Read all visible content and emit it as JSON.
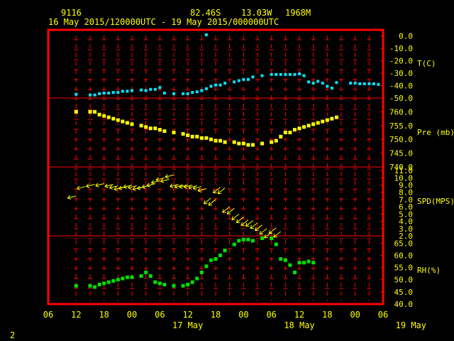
{
  "header": {
    "station": "9116",
    "lat": "82.46S",
    "lon": "13.03W",
    "elevation": "1968M",
    "time_range": "16 May 2015/120000UTC - 19 May 2015/000000UTC"
  },
  "footer": {
    "page_number": "2"
  },
  "colors": {
    "frame": "#ff0000",
    "text": "#ffff00",
    "temp": "#00e5ff",
    "pressure": "#ffff00",
    "wind": "#ffff00",
    "rh": "#00e000",
    "tick": "#ff0000"
  },
  "chart_data": {
    "type": "scatter",
    "x_axis": {
      "hour_ticks": [
        "06",
        "12",
        "18",
        "00",
        "06",
        "12",
        "18",
        "00",
        "06",
        "12",
        "18",
        "00",
        "06"
      ],
      "day_labels": [
        {
          "label": "17 May",
          "hour": 36
        },
        {
          "label": "18 May",
          "hour": 60
        },
        {
          "label": "19 May",
          "hour": 84
        }
      ],
      "range_hours": [
        6,
        78
      ]
    },
    "panels": [
      {
        "name": "T(C)",
        "ylim": [
          -50,
          5
        ],
        "ticks": [
          "0.0",
          "-10.0",
          "-20.0",
          "-30.0",
          "-40.0",
          "-50.0"
        ],
        "tick_values": [
          0,
          -10,
          -20,
          -30,
          -40,
          -50
        ],
        "points": [
          [
            12,
            -47
          ],
          [
            15,
            -47.5
          ],
          [
            16,
            -47.5
          ],
          [
            17,
            -46.5
          ],
          [
            18,
            -46
          ],
          [
            19,
            -46
          ],
          [
            20,
            -45.5
          ],
          [
            21,
            -45.5
          ],
          [
            22,
            -44.5
          ],
          [
            23,
            -44.5
          ],
          [
            24,
            -44
          ],
          [
            26,
            -43.5
          ],
          [
            27,
            -44
          ],
          [
            28,
            -43
          ],
          [
            29,
            -43
          ],
          [
            30,
            -41.5
          ],
          [
            31,
            -46
          ],
          [
            33,
            -46.5
          ],
          [
            35,
            -46.5
          ],
          [
            36,
            -46.5
          ],
          [
            37,
            -45.5
          ],
          [
            38,
            -45
          ],
          [
            39,
            -44
          ],
          [
            40,
            -42.5
          ],
          [
            41,
            -40.5
          ],
          [
            42,
            -39.5
          ],
          [
            43,
            -39.5
          ],
          [
            44,
            -38
          ],
          [
            46,
            -37
          ],
          [
            47,
            -36
          ],
          [
            48,
            -35
          ],
          [
            49,
            -35
          ],
          [
            50,
            -33
          ],
          [
            52,
            -32
          ],
          [
            54,
            -31
          ],
          [
            55,
            -31
          ],
          [
            56,
            -31
          ],
          [
            57,
            -31
          ],
          [
            58,
            -31
          ],
          [
            59,
            -31
          ],
          [
            60,
            -30.5
          ],
          [
            61,
            -32
          ],
          [
            62,
            -37
          ],
          [
            63,
            -38
          ],
          [
            64,
            -36.5
          ],
          [
            65,
            -38
          ],
          [
            66,
            -40.5
          ],
          [
            67,
            -42
          ],
          [
            68,
            -37.5
          ],
          [
            71,
            -38
          ],
          [
            72,
            -38
          ],
          [
            73,
            -38.5
          ],
          [
            74,
            -38.5
          ],
          [
            75,
            -38.5
          ],
          [
            76,
            -38.5
          ],
          [
            77,
            -39
          ]
        ],
        "outlier": [
          [
            40,
            1
          ]
        ]
      },
      {
        "name": "Pre (mb)",
        "ylim": [
          740,
          765
        ],
        "ticks": [
          "760.0",
          "755.0",
          "750.0",
          "745.0",
          "740.0"
        ],
        "tick_values": [
          760,
          755,
          750,
          745,
          740
        ],
        "points": [
          [
            12,
            760
          ],
          [
            15,
            760
          ],
          [
            16,
            760
          ],
          [
            17,
            759
          ],
          [
            18,
            758.5
          ],
          [
            19,
            758
          ],
          [
            20,
            757.5
          ],
          [
            21,
            757
          ],
          [
            22,
            756.5
          ],
          [
            23,
            756
          ],
          [
            24,
            755.5
          ],
          [
            26,
            755
          ],
          [
            27,
            754.5
          ],
          [
            28,
            754
          ],
          [
            29,
            754
          ],
          [
            30,
            753.5
          ],
          [
            31,
            753
          ],
          [
            33,
            752.5
          ],
          [
            35,
            752
          ],
          [
            36,
            751.5
          ],
          [
            37,
            751
          ],
          [
            38,
            751
          ],
          [
            39,
            750.5
          ],
          [
            40,
            750.5
          ],
          [
            41,
            750
          ],
          [
            42,
            749.5
          ],
          [
            43,
            749.5
          ],
          [
            44,
            749
          ],
          [
            46,
            749
          ],
          [
            47,
            748.5
          ],
          [
            48,
            748.5
          ],
          [
            49,
            748
          ],
          [
            50,
            748
          ],
          [
            52,
            748.5
          ],
          [
            54,
            749
          ],
          [
            55,
            749.5
          ],
          [
            56,
            751
          ],
          [
            57,
            752.5
          ],
          [
            58,
            752.5
          ],
          [
            59,
            753.5
          ],
          [
            60,
            754
          ],
          [
            61,
            754.5
          ],
          [
            62,
            755
          ],
          [
            63,
            755.5
          ],
          [
            64,
            756
          ],
          [
            65,
            756.5
          ],
          [
            66,
            757
          ],
          [
            67,
            757.5
          ],
          [
            68,
            758
          ]
        ]
      },
      {
        "name": "SPD(MPS)",
        "ylim": [
          2,
          11.5
        ],
        "ticks": [
          "11.0",
          "10.0",
          "9.0",
          "8.0",
          "7.0",
          "6.0",
          "5.0",
          "4.0",
          "3.0",
          "2.0"
        ],
        "tick_values": [
          11,
          10,
          9,
          8,
          7,
          6,
          5,
          4,
          3,
          2
        ],
        "points": [
          [
            12,
            7.5
          ],
          [
            14,
            8.8
          ],
          [
            16,
            9.1
          ],
          [
            18,
            9.2
          ],
          [
            20,
            9.1
          ],
          [
            21,
            8.9
          ],
          [
            22,
            8.7
          ],
          [
            23,
            8.8
          ],
          [
            24,
            9
          ],
          [
            25,
            8.9
          ],
          [
            26,
            8.7
          ],
          [
            27,
            8.8
          ],
          [
            28,
            9
          ],
          [
            29,
            9.2
          ],
          [
            30,
            9.6
          ],
          [
            31,
            10
          ],
          [
            32,
            9.8
          ],
          [
            33,
            10.4
          ],
          [
            34,
            9.1
          ],
          [
            35,
            9.0
          ],
          [
            36,
            9.0
          ],
          [
            37,
            9
          ],
          [
            38,
            8.9
          ],
          [
            39,
            8.8
          ],
          [
            40,
            8.5
          ],
          [
            41,
            7.2
          ],
          [
            42,
            7.0
          ],
          [
            43,
            8.7
          ],
          [
            44,
            8.6
          ],
          [
            45,
            6.0
          ],
          [
            46,
            5.8
          ],
          [
            47,
            5.0
          ],
          [
            48,
            4.6
          ],
          [
            49,
            4.2
          ],
          [
            50,
            4.1
          ],
          [
            51,
            3.8
          ],
          [
            52,
            3.5
          ],
          [
            53,
            3.0
          ],
          [
            54,
            2.5
          ],
          [
            55,
            3.1
          ],
          [
            56,
            2.6
          ]
        ]
      },
      {
        "name": "RH(%)",
        "ylim": [
          40,
          68
        ],
        "ticks": [
          "65.0",
          "60.0",
          "55.0",
          "50.0",
          "45.0",
          "40.0"
        ],
        "tick_values": [
          65,
          60,
          55,
          50,
          45,
          40
        ],
        "points": [
          [
            12,
            47.5
          ],
          [
            15,
            47.5
          ],
          [
            16,
            47
          ],
          [
            17,
            48
          ],
          [
            18,
            48.5
          ],
          [
            19,
            49
          ],
          [
            20,
            49.5
          ],
          [
            21,
            50
          ],
          [
            22,
            50.5
          ],
          [
            23,
            51
          ],
          [
            24,
            51
          ],
          [
            26,
            51.5
          ],
          [
            27,
            53
          ],
          [
            28,
            51.5
          ],
          [
            29,
            49
          ],
          [
            30,
            48.5
          ],
          [
            31,
            48
          ],
          [
            33,
            47.5
          ],
          [
            35,
            47.5
          ],
          [
            36,
            48
          ],
          [
            37,
            49
          ],
          [
            38,
            50.5
          ],
          [
            39,
            53
          ],
          [
            40,
            55.5
          ],
          [
            41,
            58
          ],
          [
            42,
            58.5
          ],
          [
            43,
            60
          ],
          [
            44,
            62
          ],
          [
            46,
            64.5
          ],
          [
            47,
            66
          ],
          [
            48,
            66.5
          ],
          [
            49,
            66.5
          ],
          [
            50,
            66
          ],
          [
            52,
            67
          ],
          [
            54,
            67
          ],
          [
            55,
            64.5
          ],
          [
            56,
            58.5
          ],
          [
            57,
            58
          ],
          [
            58,
            56
          ],
          [
            59,
            53
          ],
          [
            60,
            57
          ],
          [
            61,
            57
          ],
          [
            62,
            57.5
          ],
          [
            63,
            57
          ]
        ]
      }
    ]
  }
}
